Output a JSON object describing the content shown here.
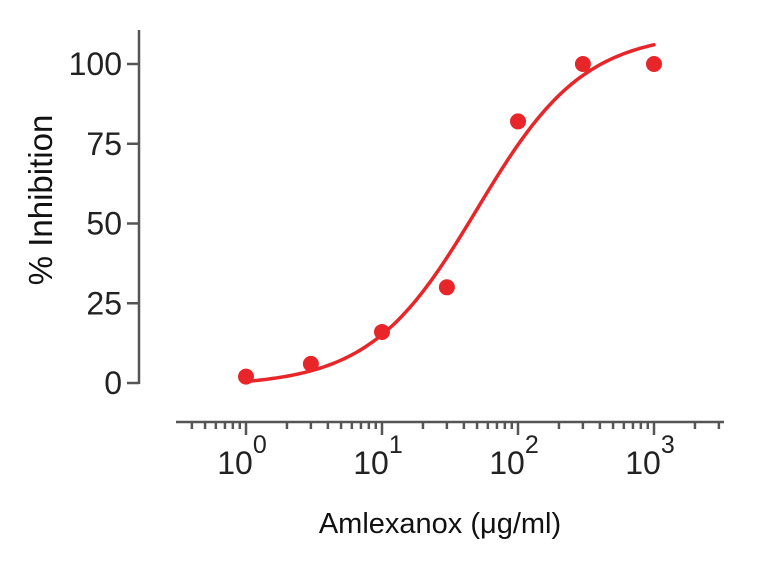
{
  "chart_data": {
    "type": "scatter",
    "title": "",
    "xlabel": "Amlexanox (μg/ml)",
    "ylabel": "% Inhibition",
    "xscale": "log",
    "xlim": [
      0.316,
      3162
    ],
    "ylim": [
      0,
      100
    ],
    "x_ticks": [
      1,
      10,
      100,
      1000
    ],
    "x_tick_labels": [
      {
        "base": "10",
        "exp": "0"
      },
      {
        "base": "10",
        "exp": "1"
      },
      {
        "base": "10",
        "exp": "2"
      },
      {
        "base": "10",
        "exp": "3"
      }
    ],
    "y_ticks": [
      0,
      25,
      50,
      75,
      100
    ],
    "y_tick_labels": [
      "0",
      "25",
      "50",
      "75",
      "100"
    ],
    "grid": false,
    "legend": null,
    "series": [
      {
        "name": "Data",
        "kind": "scatter",
        "color": "#e8262a",
        "x": [
          1,
          3,
          10,
          30,
          100,
          300,
          1000
        ],
        "y": [
          2,
          6,
          16,
          30,
          82,
          100,
          100
        ]
      },
      {
        "name": "Fit",
        "kind": "line",
        "color": "#e8262a",
        "model": "four-parameter logistic",
        "bottom": -1,
        "top": 110,
        "ic50": 50,
        "hill": 1.1,
        "x_range": [
          1,
          1000
        ]
      }
    ]
  },
  "colors": {
    "axis": "#555555",
    "data": "#e8262a"
  }
}
